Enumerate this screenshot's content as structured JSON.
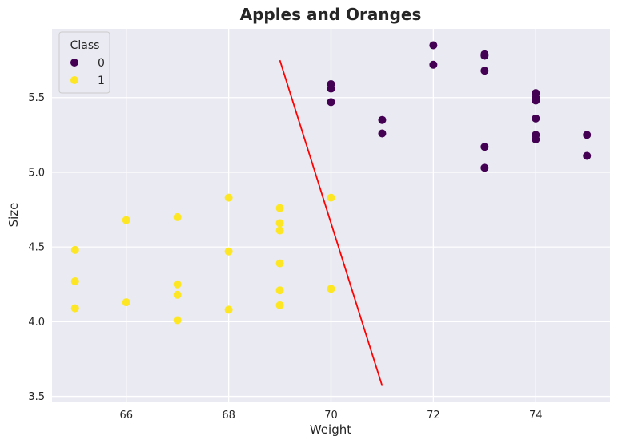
{
  "chart_data": {
    "type": "scatter",
    "title": "Apples and Oranges",
    "xlabel": "Weight",
    "ylabel": "Size",
    "xlim": [
      64.55,
      75.45
    ],
    "ylim": [
      3.46,
      5.96
    ],
    "xticks": [
      "66",
      "68",
      "70",
      "72",
      "74"
    ],
    "yticks": [
      "3.5",
      "4.0",
      "4.5",
      "5.0",
      "5.5"
    ],
    "grid": true,
    "legend": {
      "title": "Class",
      "placement": "top-left",
      "entries": [
        "0",
        "1"
      ]
    },
    "series": [
      {
        "name": "0",
        "color": "#440154",
        "points": [
          [
            70,
            5.59
          ],
          [
            70,
            5.56
          ],
          [
            70,
            5.47
          ],
          [
            71,
            5.35
          ],
          [
            71,
            5.26
          ],
          [
            72,
            5.85
          ],
          [
            72,
            5.72
          ],
          [
            73,
            5.79
          ],
          [
            73,
            5.78
          ],
          [
            73,
            5.68
          ],
          [
            73,
            5.17
          ],
          [
            73,
            5.03
          ],
          [
            74,
            5.53
          ],
          [
            74,
            5.5
          ],
          [
            74,
            5.48
          ],
          [
            74,
            5.36
          ],
          [
            74,
            5.25
          ],
          [
            74,
            5.22
          ],
          [
            75,
            5.25
          ],
          [
            75,
            5.11
          ]
        ]
      },
      {
        "name": "1",
        "color": "#fde725",
        "points": [
          [
            65,
            4.48
          ],
          [
            65,
            4.27
          ],
          [
            65,
            4.09
          ],
          [
            66,
            4.68
          ],
          [
            66,
            4.13
          ],
          [
            67,
            4.7
          ],
          [
            67,
            4.25
          ],
          [
            67,
            4.18
          ],
          [
            67,
            4.01
          ],
          [
            68,
            4.83
          ],
          [
            68,
            4.47
          ],
          [
            68,
            4.08
          ],
          [
            69,
            4.76
          ],
          [
            69,
            4.66
          ],
          [
            69,
            4.61
          ],
          [
            69,
            4.39
          ],
          [
            69,
            4.21
          ],
          [
            69,
            4.11
          ],
          [
            70,
            4.83
          ],
          [
            70,
            4.22
          ]
        ]
      }
    ],
    "decision_line": {
      "color": "#ff0000",
      "points": [
        [
          69,
          5.75
        ],
        [
          71,
          3.57
        ]
      ]
    }
  }
}
